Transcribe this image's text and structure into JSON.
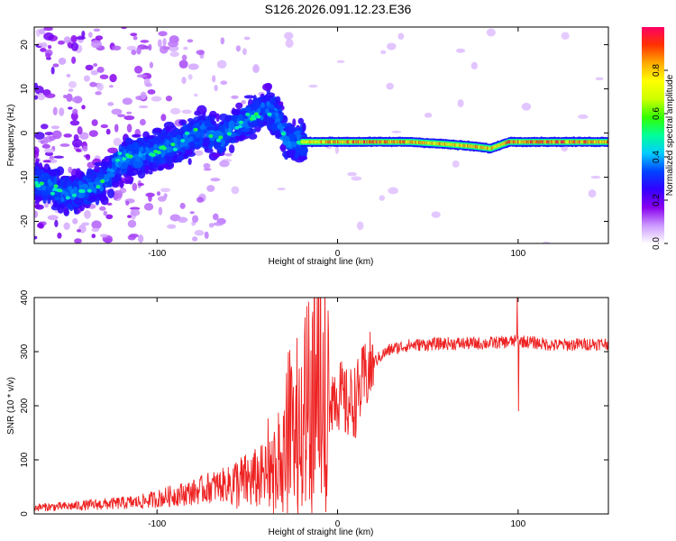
{
  "title": "S126.2026.091.12.23.E36",
  "chart_data": [
    {
      "type": "heatmap",
      "name": "spectrogram",
      "xlabel": "Height of straight line (km)",
      "ylabel": "Frequency (Hz)",
      "xlim": [
        -168,
        150
      ],
      "ylim": [
        -25,
        24
      ],
      "xticks": [
        -100,
        0,
        100
      ],
      "yticks": [
        -20,
        -10,
        0,
        10,
        20
      ],
      "colorbar": {
        "label": "Normalized spectral amplitude",
        "range": [
          0,
          1
        ],
        "ticks": [
          "0.0",
          "0.2",
          "0.4",
          "0.6",
          "0.8"
        ],
        "colors": [
          "#ffffff",
          "#cc99ff",
          "#8800ee",
          "#3300ff",
          "#0044ff",
          "#00ccff",
          "#00ff99",
          "#33ff00",
          "#ccff00",
          "#ffff00",
          "#ffaa00",
          "#ff3300",
          "#ff0066"
        ]
      },
      "ridge": {
        "heights_km": [
          -168,
          -150,
          -140,
          -130,
          -120,
          -100,
          -85,
          -75,
          -65,
          -55,
          -45,
          -38,
          -33,
          -28,
          -20,
          -10,
          0,
          20,
          40,
          60,
          75,
          85,
          95,
          120,
          150
        ],
        "frequency_hz": [
          -11,
          -14,
          -13,
          -11,
          -6,
          -4,
          -2,
          1,
          -1,
          2,
          4,
          6,
          3,
          -2,
          -2,
          -2,
          -2,
          -2,
          -2,
          -2.5,
          -3,
          -3.5,
          -2,
          -2,
          -2
        ],
        "peak_amplitude": [
          0.3,
          0.35,
          0.4,
          0.35,
          0.3,
          0.35,
          0.4,
          0.4,
          0.45,
          0.5,
          0.55,
          0.55,
          0.5,
          0.6,
          0.75,
          0.85,
          0.9,
          0.95,
          0.9,
          0.85,
          0.9,
          0.85,
          0.9,
          0.95,
          0.9
        ]
      }
    },
    {
      "type": "line",
      "name": "snr",
      "xlabel": "Height of straight line (km)",
      "ylabel": "SNR (10 * v/v)",
      "xlim": [
        -168,
        150
      ],
      "ylim": [
        0,
        400
      ],
      "xticks": [
        -100,
        0,
        100
      ],
      "yticks": [
        0,
        100,
        200,
        300,
        400
      ],
      "color": "#ee2222",
      "series": [
        {
          "name": "SNR",
          "x": [
            -168,
            -150,
            -130,
            -110,
            -100,
            -90,
            -80,
            -70,
            -60,
            -50,
            -40,
            -35,
            -30,
            -25,
            -20,
            -15,
            -10,
            -5,
            0,
            5,
            10,
            15,
            20,
            25,
            30,
            40,
            60,
            80,
            95,
            100,
            105,
            120,
            150
          ],
          "y": [
            12,
            14,
            18,
            22,
            28,
            35,
            40,
            50,
            55,
            60,
            70,
            80,
            110,
            150,
            200,
            230,
            240,
            220,
            225,
            200,
            210,
            250,
            280,
            295,
            305,
            312,
            315,
            315,
            318,
            320,
            318,
            312,
            315
          ],
          "spikes": [
            {
              "x": -16,
              "y": 392
            },
            {
              "x": -5,
              "y": 335
            },
            {
              "x": 99.5,
              "y": 400
            },
            {
              "x": 100.2,
              "y": 190
            }
          ]
        }
      ]
    }
  ]
}
